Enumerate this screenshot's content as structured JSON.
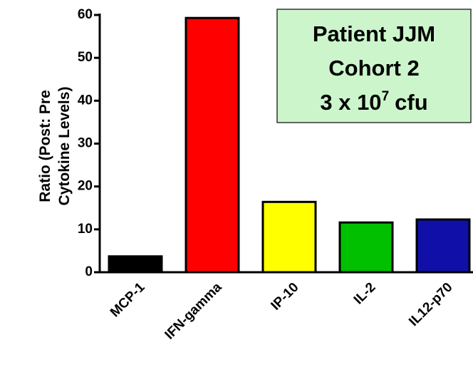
{
  "chart_data": {
    "type": "bar",
    "y_label_lines": [
      "Ratio (Post: Pre",
      "Cytokine Levels)"
    ],
    "categories": [
      "MCP-1",
      "IFN-gamma",
      "IP-10",
      "IL-2",
      "IL12-p70"
    ],
    "values": [
      3.7,
      59.3,
      16.4,
      11.6,
      12.3
    ],
    "colors": [
      "#000000",
      "#ff0000",
      "#ffff00",
      "#00c000",
      "#1010a8"
    ],
    "ylim": [
      0,
      60
    ],
    "yticks": [
      0,
      10,
      20,
      30,
      40,
      50,
      60
    ],
    "annotation": {
      "lines": [
        "Patient JJM",
        "Cohort 2"
      ],
      "base": "3 x 10",
      "sup": "7",
      "unit": "cfu"
    }
  }
}
